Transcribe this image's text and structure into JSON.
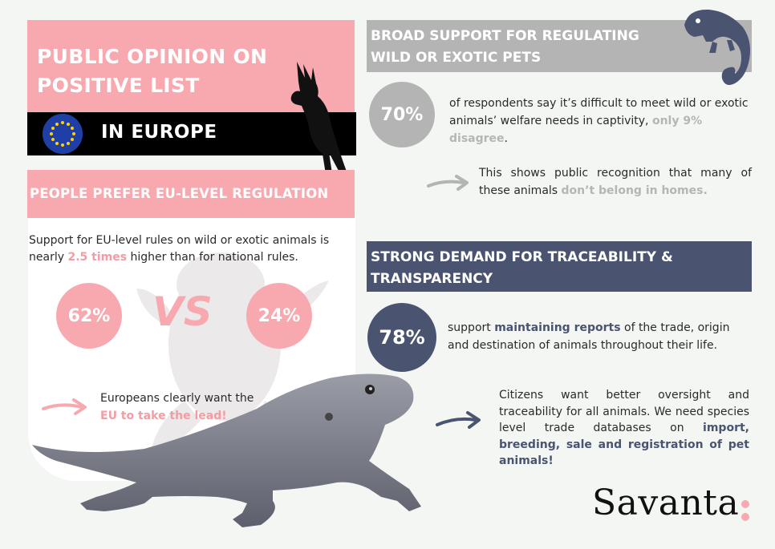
{
  "title": {
    "line1": "PUBLIC OPINION ON",
    "line2": "POSITIVE LIST",
    "region": "IN EUROPE"
  },
  "eu_regulation": {
    "header": "PEOPLE PREFER EU-LEVEL REGULATION",
    "support_pre": "Support for EU-level rules on wild or exotic animals is nearly ",
    "support_highlight": "2.5 times",
    "support_post": " higher than for national rules.",
    "left_value": "62%",
    "vs_label": "VS",
    "right_value": "24%",
    "lead_text": "Europeans clearly want the",
    "lead_highlight": "EU to take the lead!"
  },
  "broad_support": {
    "header": "BROAD SUPPORT FOR REGULATING WILD OR EXOTIC PETS",
    "value": "70%",
    "text": "of respondents say it’s difficult to meet wild or exotic animals’ welfare needs in captivity, ",
    "text_highlight": "only 9% disagree",
    "text_end": ".",
    "shows_text": "This shows public recognition that many of these animals ",
    "shows_highlight": "don’t belong in homes."
  },
  "traceability": {
    "header": "STRONG DEMAND FOR TRACEABILITY & TRANSPARENCY",
    "value": "78%",
    "text_pre": "support ",
    "text_highlight": "maintaining reports",
    "text_post": " of the trade, origin and destination of animals throughout their life.",
    "citizens_text": "Citizens want better oversight and traceability for all animals. We need species level trade databases on ",
    "citizens_highlight": "import, breeding, sale and registration of pet animals!"
  },
  "brand": {
    "logo": "Savanta"
  },
  "colors": {
    "pink": "#f8a9b0",
    "grey": "#b4b4b4",
    "navy": "#4a5470",
    "black": "#000000"
  }
}
